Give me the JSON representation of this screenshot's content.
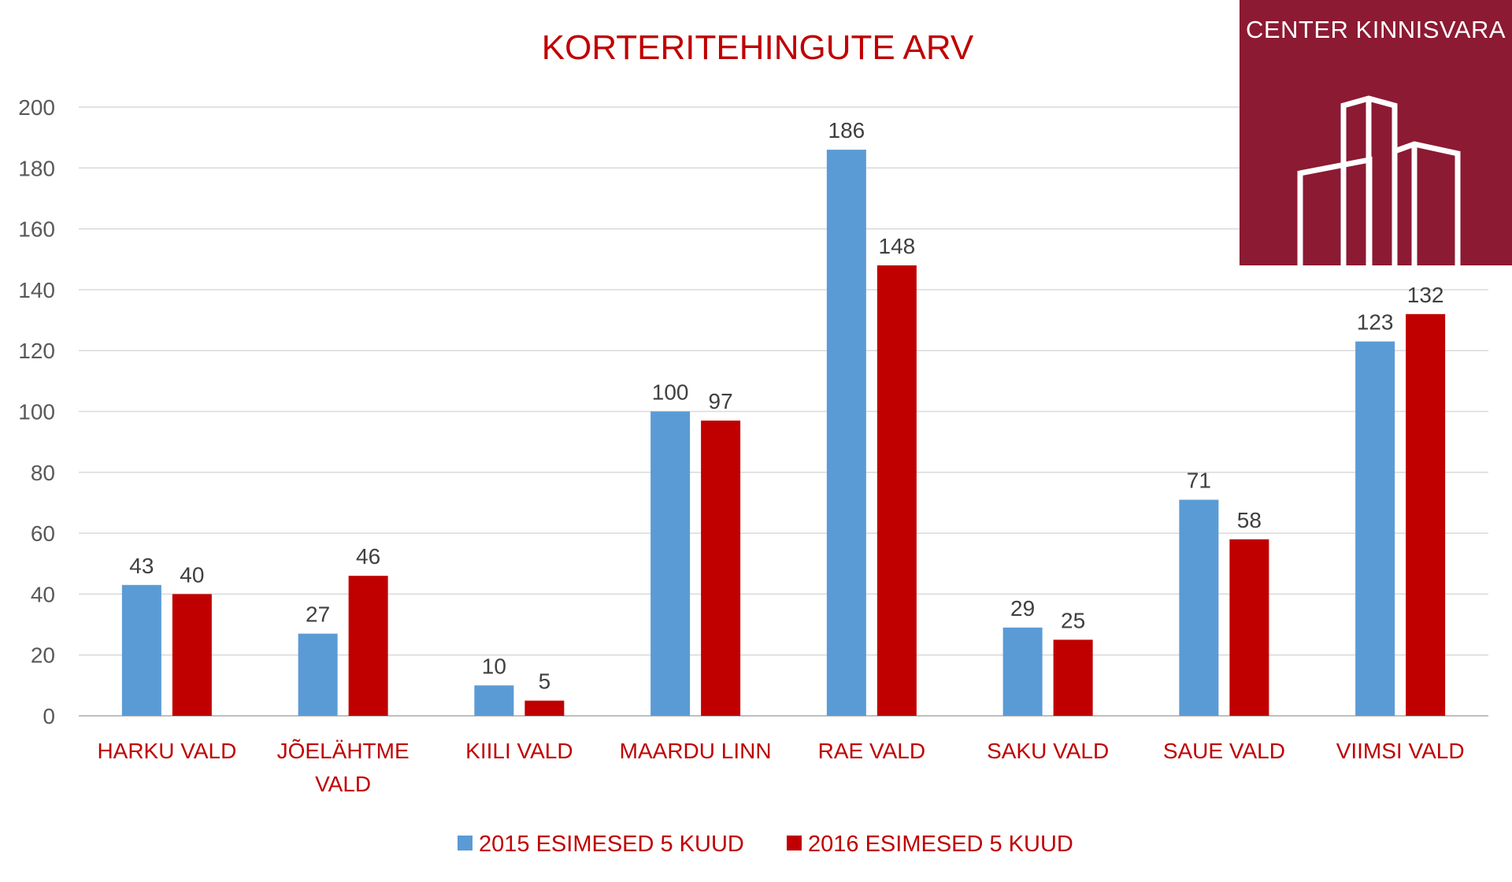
{
  "chart_data": {
    "type": "bar",
    "title": "KORTERITEHINGUTE ARV",
    "categories": [
      [
        "HARKU VALD"
      ],
      [
        "JÕELÄHTME",
        "VALD"
      ],
      [
        "KIILI VALD"
      ],
      [
        "MAARDU LINN"
      ],
      [
        "RAE VALD"
      ],
      [
        "SAKU VALD"
      ],
      [
        "SAUE VALD"
      ],
      [
        "VIIMSI VALD"
      ]
    ],
    "series": [
      {
        "name": "2015 ESIMESED 5 KUUD",
        "color": "#5b9bd5",
        "values": [
          43,
          27,
          10,
          100,
          186,
          29,
          71,
          123
        ]
      },
      {
        "name": "2016 ESIMESED 5 KUUD",
        "color": "#c00000",
        "values": [
          40,
          46,
          5,
          97,
          148,
          25,
          58,
          132
        ]
      }
    ],
    "ylim": [
      0,
      200
    ],
    "yticks": [
      0,
      20,
      40,
      60,
      80,
      100,
      120,
      140,
      160,
      180,
      200
    ],
    "grid": true,
    "legend": "bottom",
    "accent_color": "#c00000"
  },
  "logo": {
    "text": "CENTER KINNISVARA",
    "color": "#8c1a32"
  }
}
